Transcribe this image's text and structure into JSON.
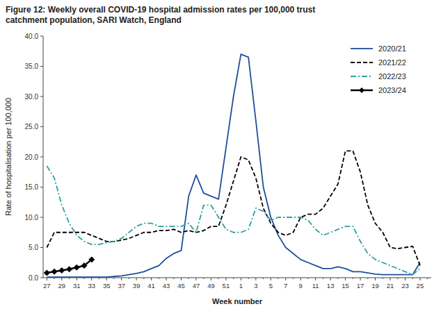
{
  "chart_data": {
    "type": "line",
    "title": "Figure 12: Weekly overall COVID-19 hospital admission rates per 100,000 trust\ncatchment population, SARI Watch, England",
    "x_label": "Week number",
    "y_label": "Rate of hospitalisation per 100,000",
    "categories": [
      "27",
      null,
      "29",
      null,
      "31",
      null,
      "33",
      null,
      "35",
      null,
      "37",
      null,
      "39",
      null,
      "41",
      null,
      "43",
      null,
      "45",
      null,
      "47",
      null,
      "49",
      null,
      "51",
      null,
      "1",
      null,
      "3",
      null,
      "5",
      null,
      "7",
      null,
      "9",
      null,
      "11",
      null,
      "13",
      null,
      "15",
      null,
      "17",
      null,
      "19",
      null,
      "21",
      null,
      "23",
      null,
      "25",
      null
    ],
    "ylim": [
      0,
      40.0
    ],
    "yticks": [
      {
        "value": 0.0,
        "label": "0.0"
      },
      {
        "value": 5.0,
        "label": "5.0"
      },
      {
        "value": 10.0,
        "label": "10.0"
      },
      {
        "value": 15.0,
        "label": "15.0"
      },
      {
        "value": 20.0,
        "label": "20.0"
      },
      {
        "value": 25.0,
        "label": "25.0"
      },
      {
        "value": 30.0,
        "label": "30.0"
      },
      {
        "value": 35.0,
        "label": "35.0"
      },
      {
        "value": 40.0,
        "label": "40.0"
      }
    ],
    "grid": false,
    "legend": "upper right",
    "series": [
      {
        "name": "2020/21",
        "color": "#1f4e9c",
        "line_style": "solid",
        "values": [
          0.1,
          0.1,
          0.1,
          0.1,
          0.1,
          0.1,
          0.1,
          0.1,
          0.1,
          0.2,
          0.3,
          0.5,
          0.7,
          1.0,
          1.5,
          2.0,
          3.2,
          4.0,
          4.5,
          13.5,
          17.0,
          14.0,
          13.5,
          13.0,
          21.5,
          30.0,
          37.0,
          36.5,
          26.0,
          15.0,
          10.0,
          7.0,
          5.0,
          4.0,
          3.0,
          2.5,
          2.0,
          1.5,
          1.5,
          1.8,
          1.5,
          1.0,
          1.0,
          0.8,
          0.6,
          0.5,
          0.5,
          0.5,
          0.5,
          0.5,
          2.5,
          null
        ]
      },
      {
        "name": "2021/22",
        "color": "#000000",
        "line_style": "dashed",
        "values": [
          5.0,
          7.5,
          7.5,
          7.5,
          7.5,
          7.5,
          7.0,
          6.5,
          6.0,
          6.0,
          6.2,
          6.5,
          7.0,
          7.5,
          7.5,
          7.8,
          7.8,
          8.0,
          7.5,
          7.8,
          7.5,
          7.8,
          8.5,
          8.5,
          12.0,
          16.0,
          20.0,
          19.5,
          16.5,
          11.5,
          9.0,
          7.5,
          7.0,
          7.5,
          10.0,
          10.5,
          10.5,
          11.5,
          13.5,
          15.5,
          21.0,
          21.0,
          17.5,
          12.0,
          9.0,
          7.5,
          5.0,
          4.8,
          5.0,
          5.2,
          2.0,
          null
        ]
      },
      {
        "name": "2022/23",
        "color": "#2ca09c",
        "line_style": "dashdot",
        "values": [
          18.5,
          16.5,
          12.0,
          9.0,
          7.0,
          6.0,
          5.5,
          5.5,
          5.8,
          6.0,
          6.5,
          7.5,
          8.5,
          9.0,
          9.0,
          8.5,
          8.5,
          8.5,
          8.5,
          9.0,
          7.5,
          12.0,
          12.0,
          10.0,
          8.0,
          7.5,
          7.5,
          8.0,
          11.5,
          11.0,
          9.5,
          10.0,
          10.0,
          10.0,
          10.0,
          9.5,
          8.0,
          7.0,
          7.5,
          8.0,
          8.5,
          8.5,
          6.0,
          4.0,
          3.0,
          2.5,
          2.0,
          1.5,
          1.0,
          0.5,
          1.5,
          null
        ]
      },
      {
        "name": "2023/24",
        "color": "#000000",
        "line_style": "solid",
        "marker": "diamond",
        "values": [
          0.8,
          1.0,
          1.2,
          1.4,
          1.7,
          2.0,
          3.0,
          null,
          null,
          null,
          null,
          null,
          null,
          null,
          null,
          null,
          null,
          null,
          null,
          null,
          null,
          null,
          null,
          null,
          null,
          null,
          null,
          null,
          null,
          null,
          null,
          null,
          null,
          null,
          null,
          null,
          null,
          null,
          null,
          null,
          null,
          null,
          null,
          null,
          null,
          null,
          null,
          null,
          null,
          null,
          null,
          null
        ]
      }
    ]
  }
}
